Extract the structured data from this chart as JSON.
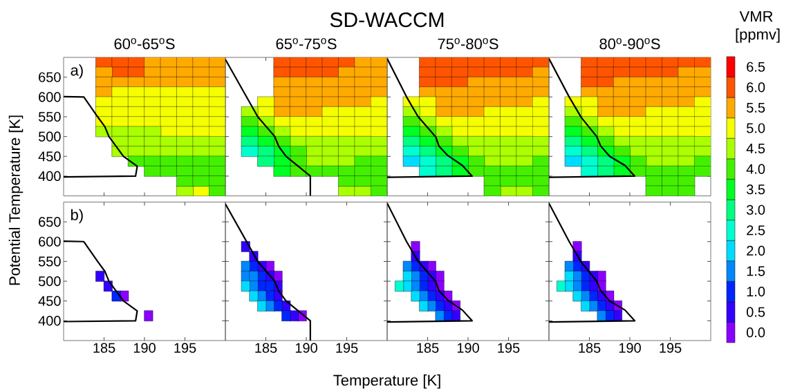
{
  "chart_data": [
    {
      "type": "scatter",
      "subtitle": "60$^{o}$-65$^{o}$S",
      "annotations": [
        "a)"
      ],
      "xlim": [
        180,
        200
      ],
      "ylim": [
        350,
        700
      ],
      "xticks": [
        185,
        190,
        195
      ],
      "yticks": [
        400,
        450,
        500,
        550,
        600,
        650
      ],
      "tick_labels": "y",
      "marker": "square",
      "series": [
        {
          "color": "#ff5500",
          "x": [
            185,
            187,
            189,
            187,
            189
          ],
          "values": [
            687.5,
            687.5,
            687.5,
            662.5,
            662.5
          ]
        },
        {
          "color": "#ffaa00",
          "x": [
            191,
            193,
            195,
            197,
            199,
            185,
            191,
            193,
            195,
            197,
            199,
            185,
            187,
            189,
            191,
            193,
            195,
            197,
            199,
            185
          ],
          "values": [
            687.5,
            687.5,
            687.5,
            687.5,
            687.5,
            662.5,
            662.5,
            662.5,
            662.5,
            662.5,
            662.5,
            637.5,
            637.5,
            637.5,
            637.5,
            637.5,
            637.5,
            637.5,
            637.5,
            612.5
          ]
        },
        {
          "color": "#f5ff00",
          "x": [
            187,
            189,
            191,
            193,
            195,
            197,
            199,
            185,
            187,
            189,
            191,
            193,
            195,
            197,
            199,
            185,
            187,
            189,
            191,
            193,
            195,
            197,
            199,
            185,
            187,
            189,
            191,
            193,
            195,
            197,
            199,
            193,
            195,
            197,
            199,
            197
          ],
          "values": [
            612.5,
            612.5,
            612.5,
            612.5,
            612.5,
            612.5,
            612.5,
            587.5,
            587.5,
            587.5,
            587.5,
            587.5,
            587.5,
            587.5,
            587.5,
            562.5,
            562.5,
            562.5,
            562.5,
            562.5,
            562.5,
            562.5,
            562.5,
            537.5,
            537.5,
            537.5,
            537.5,
            537.5,
            537.5,
            537.5,
            537.5,
            512.5,
            512.5,
            512.5,
            512.5,
            362.5
          ]
        },
        {
          "color": "#aaff00",
          "x": [
            185,
            187,
            189,
            191,
            187,
            189,
            191,
            193,
            195,
            197,
            199,
            187,
            189,
            191,
            193,
            195,
            197,
            199,
            195
          ],
          "values": [
            512.5,
            512.5,
            512.5,
            512.5,
            487.5,
            487.5,
            487.5,
            487.5,
            487.5,
            487.5,
            487.5,
            462.5,
            462.5,
            462.5,
            462.5,
            462.5,
            462.5,
            462.5,
            362.5
          ]
        },
        {
          "color": "#44f000",
          "x": [
            189,
            191,
            193,
            195,
            197,
            199,
            191,
            193,
            195,
            197,
            199,
            195,
            197,
            199,
            199
          ],
          "values": [
            437.5,
            437.5,
            437.5,
            437.5,
            437.5,
            437.5,
            412.5,
            412.5,
            412.5,
            412.5,
            412.5,
            387.5,
            387.5,
            387.5,
            362.5
          ]
        },
        {
          "type": "line",
          "marker": "none",
          "color": "#000000",
          "x": [
            180,
            182.5,
            184.2,
            185.1,
            185.6,
            187.4,
            189.1,
            188.9,
            180
          ],
          "values": [
            601,
            600,
            550,
            525,
            500,
            450,
            425,
            400,
            398
          ]
        }
      ]
    },
    {
      "type": "scatter",
      "subtitle": "65$^{o}$-75$^{o}$S",
      "xlim": [
        180,
        200
      ],
      "ylim": [
        350,
        700
      ],
      "xticks": [
        185,
        190,
        195
      ],
      "yticks": [
        400,
        450,
        500,
        550,
        600,
        650
      ],
      "tick_labels": false,
      "marker": "square",
      "series": [
        {
          "color": "#ff5500",
          "x": [
            187,
            189,
            191,
            193,
            195,
            187,
            189,
            191,
            193
          ],
          "values": [
            687.5,
            687.5,
            687.5,
            687.5,
            687.5,
            662.5,
            662.5,
            662.5,
            662.5
          ]
        },
        {
          "color": "#ffaa00",
          "x": [
            197,
            199,
            195,
            197,
            199,
            187,
            189,
            191,
            193,
            195,
            197,
            199,
            187,
            189,
            191,
            193,
            195,
            197,
            199,
            187,
            189,
            191,
            193,
            195,
            197,
            187,
            189,
            191
          ],
          "values": [
            687.5,
            687.5,
            662.5,
            662.5,
            662.5,
            637.5,
            637.5,
            637.5,
            637.5,
            637.5,
            637.5,
            637.5,
            612.5,
            612.5,
            612.5,
            612.5,
            612.5,
            612.5,
            612.5,
            587.5,
            587.5,
            587.5,
            587.5,
            587.5,
            587.5,
            562.5,
            562.5,
            562.5
          ]
        },
        {
          "color": "#f5ff00",
          "x": [
            185,
            199,
            185,
            193,
            195,
            197,
            199,
            187,
            189,
            191,
            193,
            195,
            197,
            199,
            189,
            191,
            193,
            195,
            197,
            199
          ],
          "values": [
            587.5,
            587.5,
            562.5,
            562.5,
            562.5,
            562.5,
            562.5,
            537.5,
            537.5,
            537.5,
            537.5,
            537.5,
            537.5,
            537.5,
            512.5,
            512.5,
            512.5,
            512.5,
            512.5,
            512.5
          ]
        },
        {
          "color": "#aaff00",
          "x": [
            183,
            185,
            187,
            189,
            191,
            193,
            195,
            197,
            199,
            191,
            193,
            195,
            197,
            199,
            191,
            193,
            195,
            195,
            197
          ],
          "values": [
            562.5,
            537.5,
            512.5,
            487.5,
            487.5,
            487.5,
            487.5,
            487.5,
            487.5,
            462.5,
            462.5,
            462.5,
            462.5,
            462.5,
            437.5,
            437.5,
            437.5,
            362.5,
            362.5
          ]
        },
        {
          "color": "#44f000",
          "x": [
            183,
            185,
            187,
            189,
            189,
            197,
            199,
            189,
            191,
            193,
            195,
            197,
            199,
            195,
            197,
            199,
            199
          ],
          "values": [
            537.5,
            512.5,
            487.5,
            462.5,
            437.5,
            437.5,
            437.5,
            412.5,
            412.5,
            412.5,
            412.5,
            412.5,
            412.5,
            387.5,
            387.5,
            387.5,
            362.5
          ]
        },
        {
          "color": "#00ff22",
          "x": [
            183,
            185,
            187,
            187,
            187
          ],
          "values": [
            512.5,
            487.5,
            462.5,
            437.5,
            412.5
          ]
        },
        {
          "color": "#00ff80",
          "x": [
            183,
            185,
            185
          ],
          "values": [
            487.5,
            462.5,
            437.5
          ]
        },
        {
          "color": "#00ffd0",
          "x": [
            183
          ],
          "values": [
            462.5
          ]
        },
        {
          "type": "line",
          "marker": "none",
          "color": "#000000",
          "x": [
            180,
            184,
            186.1,
            186.6,
            187.5,
            190.5,
            190.5
          ],
          "values": [
            695,
            550,
            500,
            475,
            450,
            400,
            350
          ]
        }
      ]
    },
    {
      "type": "scatter",
      "subtitle": "75$^{o}$-80$^{o}$S",
      "xlim": [
        180,
        200
      ],
      "ylim": [
        350,
        700
      ],
      "xticks": [
        185,
        190,
        195
      ],
      "yticks": [
        400,
        450,
        500,
        550,
        600,
        650
      ],
      "tick_labels": false,
      "marker": "square",
      "series": [
        {
          "color": "#ff5500",
          "x": [
            185,
            187,
            189,
            191,
            193,
            195,
            197,
            199,
            185,
            187,
            189,
            191,
            193,
            195,
            197,
            185,
            187,
            189
          ],
          "values": [
            687.5,
            687.5,
            687.5,
            687.5,
            687.5,
            687.5,
            687.5,
            687.5,
            662.5,
            662.5,
            662.5,
            662.5,
            662.5,
            662.5,
            662.5,
            637.5,
            637.5,
            637.5
          ]
        },
        {
          "color": "#ffaa00",
          "x": [
            199,
            191,
            193,
            195,
            197,
            199,
            185,
            187,
            189,
            191,
            193,
            195,
            197,
            199,
            187,
            189,
            191,
            193,
            195,
            197,
            187,
            189,
            191
          ],
          "values": [
            662.5,
            637.5,
            637.5,
            637.5,
            637.5,
            637.5,
            612.5,
            612.5,
            612.5,
            612.5,
            612.5,
            612.5,
            612.5,
            612.5,
            587.5,
            587.5,
            587.5,
            587.5,
            587.5,
            587.5,
            562.5,
            562.5,
            562.5
          ]
        },
        {
          "color": "#f5ff00",
          "x": [
            183,
            185,
            199,
            185,
            193,
            195,
            197,
            199,
            187,
            189,
            191,
            193,
            195,
            197,
            199,
            189,
            191,
            193,
            195,
            197,
            199
          ],
          "values": [
            587.5,
            587.5,
            587.5,
            562.5,
            562.5,
            562.5,
            562.5,
            562.5,
            537.5,
            537.5,
            537.5,
            537.5,
            537.5,
            537.5,
            537.5,
            512.5,
            512.5,
            512.5,
            512.5,
            512.5,
            512.5
          ]
        },
        {
          "color": "#aaff00",
          "x": [
            183,
            185,
            187,
            189,
            191,
            193,
            195,
            197,
            199,
            191,
            193,
            195,
            197,
            199,
            193,
            195,
            197,
            195,
            197
          ],
          "values": [
            562.5,
            537.5,
            512.5,
            487.5,
            487.5,
            487.5,
            487.5,
            487.5,
            487.5,
            462.5,
            462.5,
            462.5,
            462.5,
            462.5,
            437.5,
            437.5,
            437.5,
            362.5,
            362.5
          ]
        },
        {
          "color": "#44f000",
          "x": [
            183,
            185,
            187,
            189,
            191,
            199,
            191,
            193,
            195,
            197,
            199,
            193,
            195,
            197,
            199,
            193,
            199
          ],
          "values": [
            537.5,
            512.5,
            487.5,
            462.5,
            437.5,
            437.5,
            412.5,
            412.5,
            412.5,
            412.5,
            412.5,
            387.5,
            387.5,
            387.5,
            387.5,
            362.5,
            362.5
          ]
        },
        {
          "color": "#00ff22",
          "x": [
            183,
            185,
            187,
            189,
            189
          ],
          "values": [
            512.5,
            487.5,
            462.5,
            437.5,
            412.5
          ]
        },
        {
          "color": "#00ff80",
          "x": [
            183,
            185,
            187,
            187
          ],
          "values": [
            487.5,
            462.5,
            437.5,
            412.5
          ]
        },
        {
          "color": "#00ffd0",
          "x": [
            183,
            185,
            185
          ],
          "values": [
            462.5,
            437.5,
            412.5
          ]
        },
        {
          "color": "#00dcff",
          "x": [
            183
          ],
          "values": [
            437.5
          ]
        },
        {
          "type": "line",
          "marker": "none",
          "color": "#000000",
          "x": [
            180,
            182.4,
            183.8,
            186,
            186.4,
            187.5,
            189.3,
            190.5,
            180
          ],
          "values": [
            697,
            600,
            551,
            499,
            476,
            452,
            427,
            400,
            397
          ]
        }
      ]
    },
    {
      "type": "scatter",
      "subtitle": "80$^{o}$-90$^{o}$S",
      "clabel": "VMR [ppmv]",
      "clim": [
        -0.25,
        6.75
      ],
      "cticks": [
        {
          "value": 0,
          "label": "0.0"
        },
        0.5,
        {
          "value": 1,
          "label": "1.0"
        },
        1.5,
        {
          "value": 2,
          "label": "2.0"
        },
        2.5,
        {
          "value": 3,
          "label": "3.0"
        },
        3.5,
        {
          "value": 4,
          "label": "4.0"
        },
        4.5,
        {
          "value": 5,
          "label": "5.0"
        },
        5.5,
        {
          "value": 6,
          "label": "6.0"
        },
        6.5
      ],
      "xlim": [
        180,
        200
      ],
      "ylim": [
        350,
        700
      ],
      "xticks": [
        185,
        190,
        195
      ],
      "yticks": [
        400,
        450,
        500,
        550,
        600,
        650
      ],
      "tick_labels": false,
      "marker": "square",
      "series": [
        {
          "color": "#ff5500",
          "x": [
            185,
            187,
            189,
            191,
            193,
            195,
            197,
            199,
            185,
            187,
            189,
            191,
            193,
            195,
            185,
            187
          ],
          "values": [
            687.5,
            687.5,
            687.5,
            687.5,
            687.5,
            687.5,
            687.5,
            687.5,
            662.5,
            662.5,
            662.5,
            662.5,
            662.5,
            662.5,
            637.5,
            637.5
          ]
        },
        {
          "color": "#ffaa00",
          "x": [
            197,
            199,
            189,
            191,
            193,
            195,
            197,
            199,
            185,
            187,
            189,
            191,
            193,
            195,
            197,
            199,
            187,
            189,
            191,
            193,
            195,
            197,
            187,
            189,
            191
          ],
          "values": [
            662.5,
            662.5,
            637.5,
            637.5,
            637.5,
            637.5,
            637.5,
            637.5,
            612.5,
            612.5,
            612.5,
            612.5,
            612.5,
            612.5,
            612.5,
            612.5,
            587.5,
            587.5,
            587.5,
            587.5,
            587.5,
            587.5,
            562.5,
            562.5,
            562.5
          ]
        },
        {
          "color": "#f5ff00",
          "x": [
            183,
            185,
            199,
            185,
            193,
            195,
            197,
            199,
            187,
            189,
            191,
            193,
            195,
            197,
            199,
            189,
            191,
            193,
            195,
            197,
            199
          ],
          "values": [
            587.5,
            587.5,
            587.5,
            562.5,
            562.5,
            562.5,
            562.5,
            562.5,
            537.5,
            537.5,
            537.5,
            537.5,
            537.5,
            537.5,
            537.5,
            512.5,
            512.5,
            512.5,
            512.5,
            512.5,
            512.5
          ]
        },
        {
          "color": "#aaff00",
          "x": [
            183,
            185,
            187,
            189,
            191,
            193,
            195,
            197,
            199,
            191,
            193,
            195,
            197,
            199,
            193,
            195,
            197
          ],
          "values": [
            562.5,
            537.5,
            512.5,
            487.5,
            487.5,
            487.5,
            487.5,
            487.5,
            487.5,
            462.5,
            462.5,
            462.5,
            462.5,
            462.5,
            437.5,
            437.5,
            437.5
          ]
        },
        {
          "color": "#44f000",
          "x": [
            183,
            185,
            187,
            189,
            191,
            199,
            191,
            193,
            195,
            197,
            199,
            193,
            195,
            197,
            193,
            195,
            197
          ],
          "values": [
            537.5,
            512.5,
            487.5,
            462.5,
            437.5,
            437.5,
            412.5,
            412.5,
            412.5,
            412.5,
            412.5,
            387.5,
            387.5,
            387.5,
            362.5,
            362.5,
            362.5
          ]
        },
        {
          "color": "#00ff22",
          "x": [
            183,
            185,
            187,
            189,
            189
          ],
          "values": [
            512.5,
            487.5,
            462.5,
            437.5,
            412.5
          ]
        },
        {
          "color": "#00ff80",
          "x": [
            183,
            185,
            187,
            187
          ],
          "values": [
            487.5,
            462.5,
            437.5,
            412.5
          ]
        },
        {
          "color": "#00ffd0",
          "x": [
            183,
            185,
            185
          ],
          "values": [
            462.5,
            437.5,
            412.5
          ]
        },
        {
          "color": "#00dcff",
          "x": [
            183
          ],
          "values": [
            437.5
          ]
        },
        {
          "type": "line",
          "marker": "none",
          "color": "#000000",
          "x": [
            180,
            182.5,
            184,
            185.9,
            186.4,
            187.5,
            189.4,
            190.6,
            180
          ],
          "values": [
            697,
            600,
            548,
            500,
            476,
            450,
            427,
            400,
            397
          ]
        }
      ]
    },
    {
      "type": "scatter",
      "annotations": [
        "b)"
      ],
      "xlim": [
        180,
        200
      ],
      "ylim": [
        350,
        700
      ],
      "xticks": [
        185,
        190,
        195
      ],
      "yticks": [
        400,
        450,
        500,
        550,
        600,
        650
      ],
      "marker": "square",
      "series": [
        {
          "color": "#8a00ff",
          "x": [
            187.5,
            190.5
          ],
          "values": [
            462.5,
            412.5
          ]
        },
        {
          "color": "#3300ff",
          "x": [
            184.5,
            185.5
          ],
          "values": [
            512.5,
            487.5
          ]
        },
        {
          "color": "#0026ff",
          "x": [
            186.5
          ],
          "values": [
            462.5
          ]
        },
        {
          "type": "line",
          "marker": "none",
          "color": "#000000",
          "x": [
            180,
            182.5,
            184.2,
            185.1,
            185.6,
            187.4,
            189.1,
            188.9,
            180
          ],
          "values": [
            601,
            600,
            550,
            525,
            500,
            450,
            425,
            400,
            398
          ]
        }
      ]
    },
    {
      "type": "scatter",
      "xlim": [
        180,
        200
      ],
      "ylim": [
        350,
        700
      ],
      "xticks": [
        185,
        190,
        195
      ],
      "yticks": [
        400,
        450,
        500,
        550,
        600,
        650
      ],
      "tick_labels": "x",
      "marker": "square",
      "series": [
        {
          "color": "#8a00ff",
          "x": [
            185.5,
            186.5,
            189.5
          ],
          "values": [
            537.5,
            512.5,
            412.5
          ]
        },
        {
          "color": "#3300ff",
          "x": [
            182.5,
            183.5,
            184.5,
            185.5,
            186.5,
            186.5,
            187.5,
            188.5
          ],
          "values": [
            587.5,
            562.5,
            537.5,
            512.5,
            487.5,
            462.5,
            437.5,
            412.5
          ]
        },
        {
          "color": "#0026ff",
          "x": [
            183.5,
            184.5,
            184.5,
            185.5,
            185.5,
            186.5,
            187.5
          ],
          "values": [
            537.5,
            512.5,
            487.5,
            487.5,
            462.5,
            437.5,
            412.5
          ]
        },
        {
          "color": "#0088ff",
          "x": [
            182.5,
            182.5,
            183.5,
            183.5,
            184.5,
            185.5
          ],
          "values": [
            537.5,
            512.5,
            512.5,
            487.5,
            462.5,
            437.5
          ]
        },
        {
          "color": "#00dcff",
          "x": [
            182.5,
            183.5,
            184.5
          ],
          "values": [
            487.5,
            462.5,
            437.5
          ]
        },
        {
          "type": "line",
          "marker": "none",
          "color": "#000000",
          "x": [
            180,
            184,
            186.1,
            186.6,
            187.5,
            190.5,
            190.5
          ],
          "values": [
            695,
            550,
            500,
            475,
            450,
            400,
            350
          ]
        }
      ]
    },
    {
      "type": "scatter",
      "xlim": [
        180,
        200
      ],
      "ylim": [
        350,
        700
      ],
      "xticks": [
        185,
        190,
        195
      ],
      "yticks": [
        400,
        450,
        500,
        550,
        600,
        650
      ],
      "tick_labels": "x",
      "marker": "square",
      "series": [
        {
          "color": "#8a00ff",
          "x": [
            183.5,
            185.5,
            186.5,
            186.5,
            187.5,
            188.5
          ],
          "values": [
            587.5,
            537.5,
            512.5,
            487.5,
            462.5,
            437.5
          ]
        },
        {
          "color": "#3300ff",
          "x": [
            183.5,
            184.5,
            185.5,
            185.5,
            186.5,
            187.5,
            188.5
          ],
          "values": [
            562.5,
            537.5,
            512.5,
            487.5,
            462.5,
            437.5,
            412.5
          ]
        },
        {
          "color": "#0026ff",
          "x": [
            183.5,
            184.5,
            184.5,
            185.5,
            186.5,
            187.5
          ],
          "values": [
            537.5,
            512.5,
            487.5,
            462.5,
            437.5,
            412.5
          ]
        },
        {
          "color": "#0088ff",
          "x": [
            182.5,
            183.5,
            183.5,
            184.5,
            185.5,
            186.5
          ],
          "values": [
            537.5,
            512.5,
            487.5,
            462.5,
            437.5,
            412.5
          ]
        },
        {
          "color": "#00dcff",
          "x": [
            182.5,
            182.5,
            183.5,
            184.5
          ],
          "values": [
            512.5,
            487.5,
            462.5,
            437.5
          ]
        },
        {
          "color": "#00ffd0",
          "x": [
            181.5
          ],
          "values": [
            487.5
          ]
        },
        {
          "type": "line",
          "marker": "none",
          "color": "#000000",
          "x": [
            180,
            182.4,
            183.8,
            186,
            186.4,
            187.5,
            189.3,
            190.5,
            180
          ],
          "values": [
            697,
            600,
            551,
            499,
            476,
            452,
            427,
            400,
            397
          ]
        }
      ]
    },
    {
      "type": "scatter",
      "xlim": [
        180,
        200
      ],
      "ylim": [
        350,
        700
      ],
      "xticks": [
        185,
        190,
        195
      ],
      "yticks": [
        400,
        450,
        500,
        550,
        600,
        650
      ],
      "tick_labels": "x",
      "marker": "square",
      "series": [
        {
          "color": "#8a00ff",
          "x": [
            183.5,
            186.5,
            186.5,
            187.5,
            188.5
          ],
          "values": [
            587.5,
            512.5,
            487.5,
            462.5,
            437.5
          ]
        },
        {
          "color": "#3300ff",
          "x": [
            183.5,
            184.5,
            185.5,
            185.5,
            186.5,
            187.5,
            188.5
          ],
          "values": [
            562.5,
            537.5,
            512.5,
            487.5,
            462.5,
            437.5,
            412.5
          ]
        },
        {
          "color": "#0026ff",
          "x": [
            183.5,
            184.5,
            184.5,
            185.5,
            186.5,
            187.5
          ],
          "values": [
            537.5,
            512.5,
            487.5,
            462.5,
            437.5,
            412.5
          ]
        },
        {
          "color": "#0088ff",
          "x": [
            182.5,
            183.5,
            183.5,
            184.5,
            185.5,
            186.5
          ],
          "values": [
            537.5,
            512.5,
            487.5,
            462.5,
            437.5,
            412.5
          ]
        },
        {
          "color": "#00dcff",
          "x": [
            182.5,
            182.5,
            183.5,
            184.5
          ],
          "values": [
            512.5,
            487.5,
            462.5,
            437.5
          ]
        },
        {
          "color": "#00ffd0",
          "x": [
            181.5
          ],
          "values": [
            487.5
          ]
        },
        {
          "type": "line",
          "marker": "none",
          "color": "#000000",
          "x": [
            180,
            182.5,
            184,
            185.9,
            186.4,
            187.5,
            189.4,
            190.6,
            180
          ],
          "values": [
            697,
            600,
            548,
            500,
            476,
            450,
            427,
            400,
            397
          ]
        }
      ]
    },
    {
      "type": "other",
      "title": "SD-WACCM",
      "xlabel": "Temperature [K]",
      "ylabel": "Potential Temperature [K]"
    }
  ]
}
